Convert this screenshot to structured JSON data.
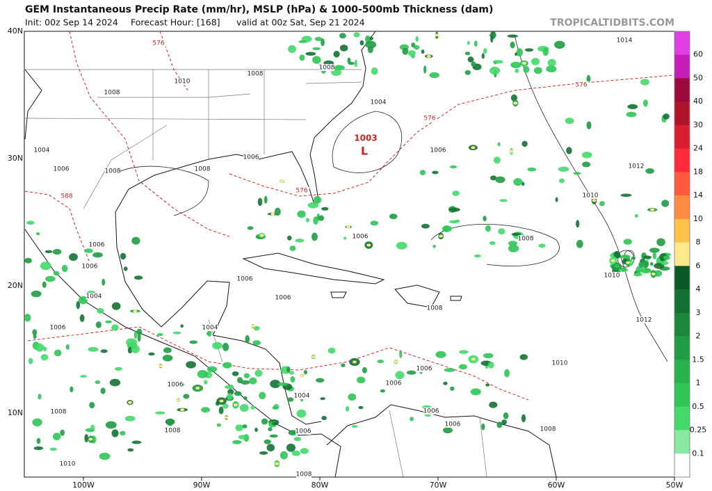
{
  "header": {
    "title": "GEM Instantaneous Precip Rate (mm/hr), MSLP (hPa) & 1000-500mb Thickness (dam)",
    "init": "Init: 00z Sep 14 2024",
    "forecast_hour": "Forecast Hour: [168]",
    "valid": "valid at 00z Sat, Sep 21 2024",
    "site": "TROPICALTIDBITS.COM"
  },
  "map": {
    "lat_labels": [
      "40N",
      "30N",
      "20N",
      "10N"
    ],
    "lon_labels": [
      "100W",
      "90W",
      "80W",
      "70W",
      "60W",
      "50W"
    ],
    "low": {
      "pressure": "1003",
      "symbol": "L"
    },
    "isobar_labels": [
      "1014",
      "576",
      "576",
      "576",
      "576",
      "588",
      "1008",
      "1008",
      "1010",
      "1008",
      "1004",
      "1004",
      "1006",
      "1008",
      "1008",
      "1006",
      "1006",
      "1012",
      "1010",
      "1006",
      "1006",
      "1006",
      "1008",
      "1006",
      "1006",
      "1008",
      "1004",
      "1010",
      "1006",
      "1004",
      "1012",
      "1010",
      "1006",
      "1006",
      "1006",
      "1004",
      "1008",
      "1006",
      "1006",
      "1008",
      "1006",
      "1008",
      "1010",
      "1008"
    ]
  },
  "colorbar": {
    "labels": [
      "60",
      "50",
      "40",
      "30",
      "24",
      "18",
      "14",
      "10",
      "8",
      "6",
      "4",
      "3",
      "2",
      "1.5",
      "1",
      "0.5",
      "0.25",
      "0.1"
    ],
    "colors": [
      "#e23ee6",
      "#c81eb8",
      "#9a0a3c",
      "#b01428",
      "#d91e32",
      "#ff2a3c",
      "#ff5a3c",
      "#ff8c40",
      "#ffc34a",
      "#ffe98a",
      "#0b5a26",
      "#137232",
      "#1a873a",
      "#1f9c44",
      "#27b24c",
      "#2fc557",
      "#44d96a",
      "#8ae9a0",
      "#ffffff"
    ]
  }
}
